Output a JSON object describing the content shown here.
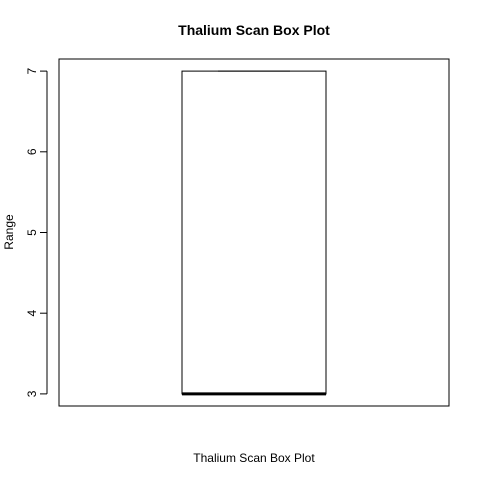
{
  "chart_data": {
    "type": "box",
    "title": "Thalium Scan Box Plot",
    "xlabel": "Thalium Scan Box Plot",
    "ylabel": "Range",
    "ylim": [
      2.85,
      7.15
    ],
    "yticks": [
      3,
      4,
      5,
      6,
      7
    ],
    "box": {
      "min": 3,
      "q1": 3,
      "median": 3,
      "q3": 7,
      "max": 7
    },
    "grid": false
  }
}
